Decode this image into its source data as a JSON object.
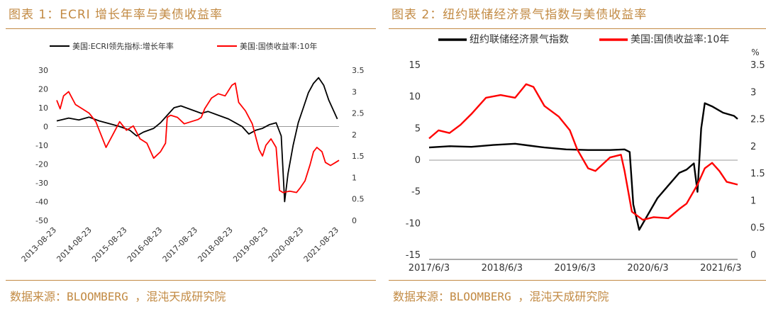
{
  "figures": [
    {
      "title": "图表 1：ECRI 增长年率与美债收益率",
      "source": "数据来源：BLOOMBERG ，混沌天成研究院"
    },
    {
      "title": "图表 2：纽约联储经济景气指数与美债收益率",
      "source": "数据来源：BLOOMBERG ，混沌天成研究院"
    }
  ],
  "chart_data": [
    {
      "type": "line",
      "title": "",
      "x_ticks": [
        "2013-08-23",
        "2014-08-23",
        "2015-08-23",
        "2016-08-23",
        "2017-08-23",
        "2018-08-23",
        "2019-08-23",
        "2020-08-23",
        "2021-08-23"
      ],
      "left_axis": {
        "ylim": [
          -50,
          30
        ],
        "ticks": [
          30,
          20,
          10,
          0,
          -10,
          -20,
          -30,
          -40,
          -50
        ]
      },
      "right_axis": {
        "ylim": [
          0,
          3.5
        ],
        "ticks": [
          "3.5",
          "3",
          "2.5",
          "2",
          "1.5",
          "1",
          "0.5",
          "0"
        ]
      },
      "legend_position": "top",
      "series": [
        {
          "name": "美国:ECRI领先指标:增长年率",
          "axis": "left",
          "color": "#000000",
          "points": [
            [
              2013.65,
              3
            ],
            [
              2014.0,
              4.5
            ],
            [
              2014.3,
              3.5
            ],
            [
              2014.6,
              5
            ],
            [
              2014.9,
              3
            ],
            [
              2015.2,
              1.5
            ],
            [
              2015.5,
              0
            ],
            [
              2015.8,
              -2
            ],
            [
              2016.0,
              -5
            ],
            [
              2016.2,
              -3
            ],
            [
              2016.5,
              -1
            ],
            [
              2016.7,
              2
            ],
            [
              2016.9,
              6
            ],
            [
              2017.1,
              10
            ],
            [
              2017.3,
              11
            ],
            [
              2017.6,
              9
            ],
            [
              2017.9,
              7
            ],
            [
              2018.1,
              8
            ],
            [
              2018.4,
              6
            ],
            [
              2018.7,
              4
            ],
            [
              2018.9,
              2
            ],
            [
              2019.1,
              0
            ],
            [
              2019.3,
              -4
            ],
            [
              2019.5,
              -2
            ],
            [
              2019.7,
              -1
            ],
            [
              2019.9,
              1
            ],
            [
              2020.1,
              2
            ],
            [
              2020.25,
              -5
            ],
            [
              2020.35,
              -40
            ],
            [
              2020.45,
              -25
            ],
            [
              2020.6,
              -10
            ],
            [
              2020.75,
              2
            ],
            [
              2020.9,
              10
            ],
            [
              2021.05,
              18
            ],
            [
              2021.2,
              23
            ],
            [
              2021.35,
              26
            ],
            [
              2021.5,
              22
            ],
            [
              2021.65,
              14
            ],
            [
              2021.8,
              8
            ],
            [
              2021.9,
              4
            ]
          ]
        },
        {
          "name": "美国:国债收益率:10年",
          "axis": "right",
          "color": "#ff0000",
          "points": [
            [
              2013.65,
              2.8
            ],
            [
              2013.75,
              2.6
            ],
            [
              2013.85,
              2.9
            ],
            [
              2014.0,
              3.0
            ],
            [
              2014.2,
              2.7
            ],
            [
              2014.4,
              2.6
            ],
            [
              2014.6,
              2.5
            ],
            [
              2014.8,
              2.3
            ],
            [
              2015.0,
              1.9
            ],
            [
              2015.1,
              1.7
            ],
            [
              2015.3,
              2.0
            ],
            [
              2015.5,
              2.3
            ],
            [
              2015.7,
              2.1
            ],
            [
              2015.9,
              2.2
            ],
            [
              2016.1,
              1.9
            ],
            [
              2016.3,
              1.8
            ],
            [
              2016.5,
              1.45
            ],
            [
              2016.7,
              1.6
            ],
            [
              2016.85,
              1.8
            ],
            [
              2016.9,
              2.4
            ],
            [
              2017.0,
              2.45
            ],
            [
              2017.2,
              2.4
            ],
            [
              2017.4,
              2.25
            ],
            [
              2017.6,
              2.3
            ],
            [
              2017.8,
              2.35
            ],
            [
              2017.9,
              2.4
            ],
            [
              2018.0,
              2.6
            ],
            [
              2018.2,
              2.85
            ],
            [
              2018.4,
              2.95
            ],
            [
              2018.6,
              2.9
            ],
            [
              2018.8,
              3.15
            ],
            [
              2018.9,
              3.2
            ],
            [
              2019.0,
              2.75
            ],
            [
              2019.2,
              2.55
            ],
            [
              2019.4,
              2.25
            ],
            [
              2019.6,
              1.65
            ],
            [
              2019.7,
              1.5
            ],
            [
              2019.8,
              1.75
            ],
            [
              2019.95,
              1.9
            ],
            [
              2020.1,
              1.7
            ],
            [
              2020.2,
              0.7
            ],
            [
              2020.3,
              0.65
            ],
            [
              2020.5,
              0.68
            ],
            [
              2020.7,
              0.65
            ],
            [
              2020.8,
              0.75
            ],
            [
              2020.95,
              0.92
            ],
            [
              2021.1,
              1.3
            ],
            [
              2021.2,
              1.6
            ],
            [
              2021.3,
              1.7
            ],
            [
              2021.45,
              1.6
            ],
            [
              2021.55,
              1.35
            ],
            [
              2021.7,
              1.28
            ],
            [
              2021.85,
              1.35
            ],
            [
              2021.95,
              1.4
            ]
          ]
        }
      ]
    },
    {
      "type": "line",
      "title": "",
      "x_ticks": [
        "2017/6/3",
        "2018/6/3",
        "2019/6/3",
        "2020/6/3",
        "2021/6/3"
      ],
      "left_axis": {
        "ylim": [
          -15,
          15
        ],
        "ticks": [
          15,
          10,
          5,
          0,
          -5,
          -10,
          -15
        ]
      },
      "right_axis": {
        "ylim": [
          0,
          3.5
        ],
        "ticks": [
          "3.5",
          "3",
          "2.5",
          "2",
          "1.5",
          "1",
          "0.5",
          "0"
        ],
        "unit": "%"
      },
      "legend_position": "top",
      "series": [
        {
          "name": "纽约联储经济景气指数",
          "axis": "left",
          "color": "#000000",
          "points": [
            [
              2017.42,
              2
            ],
            [
              2017.7,
              2.2
            ],
            [
              2018.0,
              2.1
            ],
            [
              2018.3,
              2.4
            ],
            [
              2018.6,
              2.6
            ],
            [
              2018.8,
              2.3
            ],
            [
              2019.0,
              2
            ],
            [
              2019.3,
              1.7
            ],
            [
              2019.6,
              1.6
            ],
            [
              2019.9,
              1.6
            ],
            [
              2020.1,
              1.7
            ],
            [
              2020.17,
              1.3
            ],
            [
              2020.22,
              -7
            ],
            [
              2020.3,
              -11
            ],
            [
              2020.4,
              -9
            ],
            [
              2020.55,
              -6
            ],
            [
              2020.7,
              -4
            ],
            [
              2020.85,
              -2
            ],
            [
              2020.95,
              -1.5
            ],
            [
              2021.05,
              -0.5
            ],
            [
              2021.1,
              -5
            ],
            [
              2021.15,
              5
            ],
            [
              2021.2,
              9
            ],
            [
              2021.3,
              8.5
            ],
            [
              2021.45,
              7.5
            ],
            [
              2021.6,
              7
            ],
            [
              2021.65,
              6.5
            ]
          ]
        },
        {
          "name": "美国:国债收益率:10年",
          "axis": "right",
          "color": "#ff0000",
          "points": [
            [
              2017.42,
              2.15
            ],
            [
              2017.55,
              2.3
            ],
            [
              2017.7,
              2.25
            ],
            [
              2017.85,
              2.4
            ],
            [
              2018.0,
              2.6
            ],
            [
              2018.2,
              2.9
            ],
            [
              2018.4,
              2.95
            ],
            [
              2018.6,
              2.9
            ],
            [
              2018.75,
              3.15
            ],
            [
              2018.85,
              3.1
            ],
            [
              2019.0,
              2.75
            ],
            [
              2019.2,
              2.55
            ],
            [
              2019.35,
              2.3
            ],
            [
              2019.45,
              1.95
            ],
            [
              2019.6,
              1.6
            ],
            [
              2019.7,
              1.55
            ],
            [
              2019.9,
              1.8
            ],
            [
              2020.05,
              1.85
            ],
            [
              2020.1,
              1.55
            ],
            [
              2020.2,
              0.8
            ],
            [
              2020.35,
              0.65
            ],
            [
              2020.5,
              0.7
            ],
            [
              2020.7,
              0.68
            ],
            [
              2020.85,
              0.85
            ],
            [
              2020.95,
              0.95
            ],
            [
              2021.1,
              1.3
            ],
            [
              2021.2,
              1.6
            ],
            [
              2021.3,
              1.7
            ],
            [
              2021.4,
              1.55
            ],
            [
              2021.5,
              1.35
            ],
            [
              2021.65,
              1.3
            ]
          ]
        }
      ]
    }
  ]
}
